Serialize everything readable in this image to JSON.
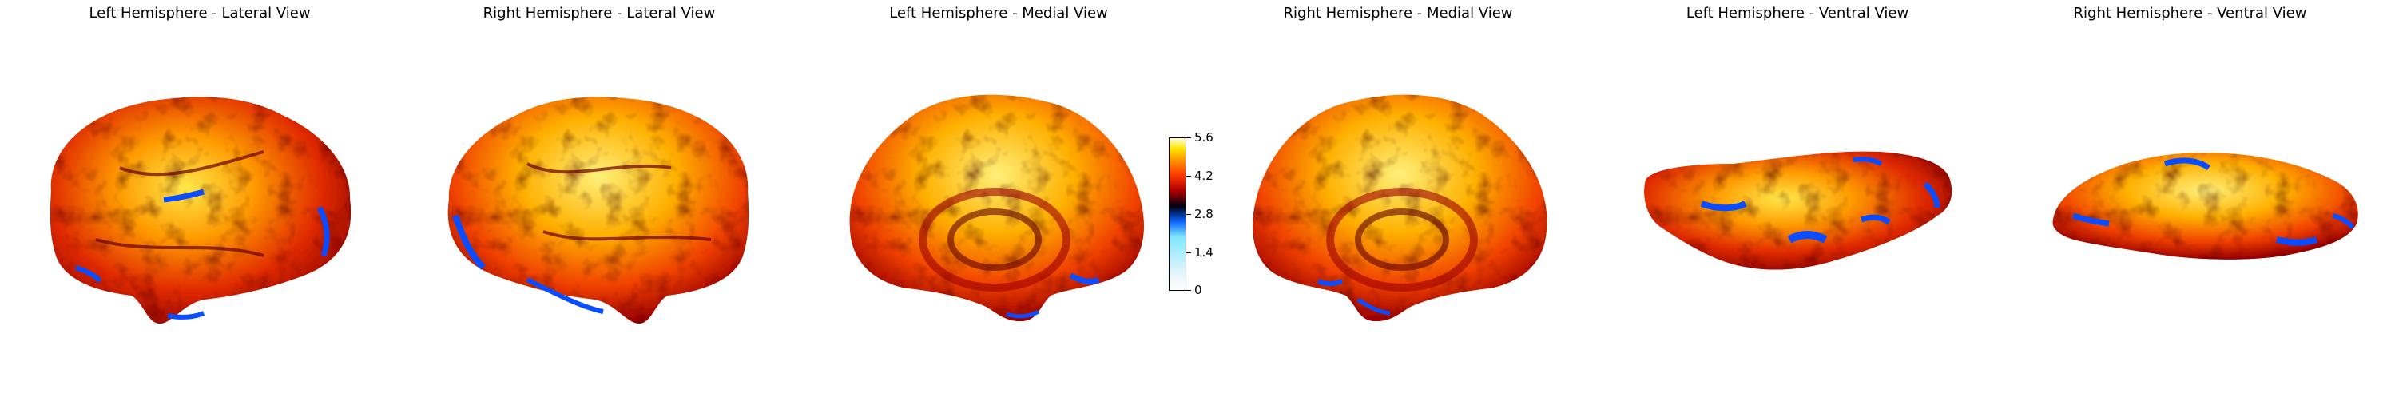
{
  "panels": [
    {
      "title": "Left Hemisphere - Lateral View"
    },
    {
      "title": "Right Hemisphere - Lateral View"
    },
    {
      "title": "Left Hemisphere - Medial View"
    },
    {
      "title": "Right Hemisphere - Medial View"
    },
    {
      "title": "Left Hemisphere - Ventral View"
    },
    {
      "title": "Right Hemisphere - Ventral View"
    }
  ],
  "colorbar": {
    "colormap": "hot-cold",
    "min": 0,
    "max": 5.6,
    "ticks": [
      "5.6",
      "4.2",
      "2.8",
      "1.4",
      "0"
    ]
  }
}
